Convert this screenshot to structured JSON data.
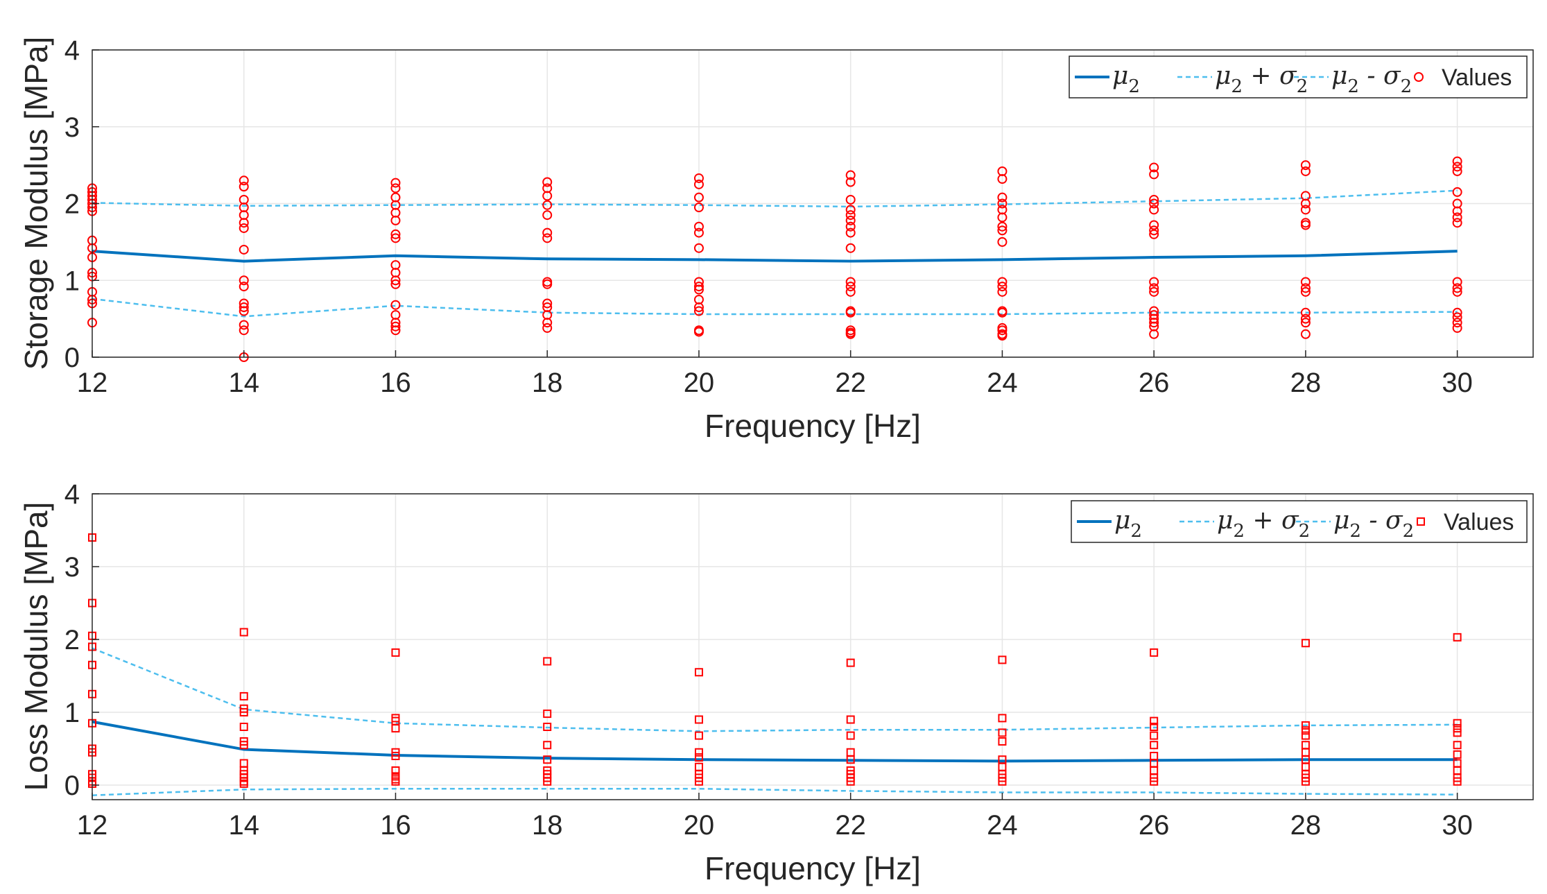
{
  "colors": {
    "mean": "#0072bd",
    "band": "#4dbeee",
    "points": "#ff0000",
    "grid": "#e6e6e6",
    "axis": "#262626"
  },
  "chart_data": [
    {
      "id": "storage",
      "type": "line",
      "marker": "circle",
      "xlabel": "Frequency [Hz]",
      "ylabel": "Storage Modulus [MPa]",
      "xlim": [
        12,
        31
      ],
      "ylim": [
        0,
        4
      ],
      "xticks": [
        12,
        14,
        16,
        18,
        20,
        22,
        24,
        26,
        28,
        30
      ],
      "yticks": [
        0,
        1,
        2,
        3,
        4
      ],
      "grid": true,
      "legend": {
        "position": "top-right",
        "entries": [
          {
            "kind": "mean",
            "label": "μ",
            "sub": "2",
            "rest": ""
          },
          {
            "kind": "plus",
            "label": "μ",
            "sub": "2",
            "rest": " + σ",
            "sub2": "2"
          },
          {
            "kind": "minus",
            "label": "μ",
            "sub": "2",
            "rest": " - σ",
            "sub2": "2"
          },
          {
            "kind": "points",
            "label": "Values"
          }
        ]
      },
      "x": [
        12,
        14,
        16,
        18,
        20,
        22,
        24,
        26,
        28,
        30
      ],
      "series": [
        {
          "name": "μ2",
          "values": [
            1.38,
            1.25,
            1.32,
            1.28,
            1.27,
            1.25,
            1.27,
            1.3,
            1.32,
            1.38
          ]
        },
        {
          "name": "μ2 + σ2",
          "values": [
            2.01,
            1.97,
            1.98,
            1.99,
            1.98,
            1.96,
            1.99,
            2.03,
            2.07,
            2.17
          ]
        },
        {
          "name": "μ2 - σ2",
          "values": [
            0.76,
            0.53,
            0.67,
            0.58,
            0.56,
            0.56,
            0.56,
            0.58,
            0.58,
            0.59
          ]
        }
      ],
      "points": [
        [
          12,
          [
            2.2,
            2.15,
            2.1,
            2.05,
            2.0,
            1.95,
            1.9,
            1.52,
            1.42,
            1.3,
            1.1,
            1.05,
            0.85,
            0.75,
            0.7,
            0.45
          ]
        ],
        [
          14,
          [
            2.3,
            2.22,
            2.05,
            1.95,
            1.85,
            1.75,
            1.68,
            1.4,
            1.0,
            0.92,
            0.7,
            0.65,
            0.6,
            0.42,
            0.35,
            0.0
          ]
        ],
        [
          16,
          [
            2.27,
            2.2,
            2.08,
            1.98,
            1.88,
            1.78,
            1.6,
            1.55,
            1.2,
            1.1,
            1.0,
            0.95,
            0.68,
            0.55,
            0.45,
            0.4,
            0.35
          ]
        ],
        [
          18,
          [
            2.28,
            2.2,
            2.1,
            1.98,
            1.85,
            1.62,
            1.55,
            0.98,
            0.95,
            0.7,
            0.65,
            0.55,
            0.45,
            0.38
          ]
        ],
        [
          20,
          [
            2.33,
            2.25,
            2.08,
            1.95,
            1.7,
            1.62,
            1.42,
            0.98,
            0.92,
            0.88,
            0.75,
            0.65,
            0.6,
            0.35,
            0.33
          ]
        ],
        [
          22,
          [
            2.37,
            2.28,
            2.05,
            1.92,
            1.85,
            1.78,
            1.7,
            1.62,
            1.42,
            0.98,
            0.92,
            0.85,
            0.6,
            0.58,
            0.35,
            0.32,
            0.3
          ]
        ],
        [
          24,
          [
            2.42,
            2.32,
            2.08,
            2.0,
            1.92,
            1.82,
            1.7,
            1.65,
            1.5,
            0.98,
            0.92,
            0.85,
            0.6,
            0.58,
            0.38,
            0.35,
            0.3,
            0.28
          ]
        ],
        [
          26,
          [
            2.47,
            2.38,
            2.05,
            2.0,
            1.92,
            1.72,
            1.65,
            1.6,
            0.98,
            0.9,
            0.85,
            0.6,
            0.55,
            0.5,
            0.45,
            0.4,
            0.3
          ]
        ],
        [
          28,
          [
            2.5,
            2.42,
            2.1,
            2.0,
            1.92,
            1.75,
            1.72,
            0.98,
            0.9,
            0.85,
            0.58,
            0.5,
            0.45,
            0.3
          ]
        ],
        [
          30,
          [
            2.55,
            2.48,
            2.42,
            2.15,
            2.0,
            1.9,
            1.82,
            1.75,
            0.98,
            0.9,
            0.85,
            0.58,
            0.52,
            0.45,
            0.38
          ]
        ]
      ]
    },
    {
      "id": "loss",
      "type": "line",
      "marker": "square",
      "xlabel": "Frequency [Hz]",
      "ylabel": "Loss Modulus [MPa]",
      "xlim": [
        12,
        31
      ],
      "ylim": [
        -0.2,
        4
      ],
      "xticks": [
        12,
        14,
        16,
        18,
        20,
        22,
        24,
        26,
        28,
        30
      ],
      "yticks": [
        0,
        1,
        2,
        3,
        4
      ],
      "grid": true,
      "legend": {
        "position": "top-right",
        "entries": [
          {
            "kind": "mean",
            "label": "μ",
            "sub": "2",
            "rest": ""
          },
          {
            "kind": "plus",
            "label": "μ",
            "sub": "2",
            "rest": " + σ",
            "sub2": "2"
          },
          {
            "kind": "minus",
            "label": "μ",
            "sub": "2",
            "rest": " - σ",
            "sub2": "2"
          },
          {
            "kind": "points",
            "label": "Values"
          }
        ]
      },
      "x": [
        12,
        14,
        16,
        18,
        20,
        22,
        24,
        26,
        28,
        30
      ],
      "series": [
        {
          "name": "μ2",
          "values": [
            0.87,
            0.49,
            0.41,
            0.37,
            0.35,
            0.34,
            0.33,
            0.34,
            0.35,
            0.35
          ]
        },
        {
          "name": "μ2 + σ2",
          "values": [
            1.88,
            1.04,
            0.85,
            0.79,
            0.74,
            0.76,
            0.76,
            0.79,
            0.82,
            0.83
          ]
        },
        {
          "name": "μ2 - σ2",
          "values": [
            -0.14,
            -0.06,
            -0.05,
            -0.05,
            -0.05,
            -0.08,
            -0.1,
            -0.1,
            -0.12,
            -0.13
          ]
        }
      ],
      "points": [
        [
          12,
          [
            3.4,
            2.5,
            2.05,
            1.9,
            1.65,
            1.25,
            0.85,
            0.5,
            0.45,
            0.15,
            0.1,
            0.05,
            0.02
          ]
        ],
        [
          14,
          [
            2.1,
            1.22,
            1.05,
            1.0,
            0.8,
            0.6,
            0.55,
            0.3,
            0.2,
            0.15,
            0.1,
            0.05,
            0.02
          ]
        ],
        [
          16,
          [
            1.82,
            0.92,
            0.88,
            0.78,
            0.45,
            0.4,
            0.2,
            0.12,
            0.08,
            0.05
          ]
        ],
        [
          18,
          [
            1.7,
            0.98,
            0.8,
            0.55,
            0.35,
            0.2,
            0.15,
            0.1,
            0.05
          ]
        ],
        [
          20,
          [
            1.55,
            0.9,
            0.68,
            0.45,
            0.38,
            0.25,
            0.15,
            0.1,
            0.05
          ]
        ],
        [
          22,
          [
            1.68,
            0.9,
            0.68,
            0.45,
            0.35,
            0.2,
            0.15,
            0.1,
            0.05
          ]
        ],
        [
          24,
          [
            1.72,
            0.92,
            0.72,
            0.6,
            0.35,
            0.25,
            0.15,
            0.1,
            0.05
          ]
        ],
        [
          26,
          [
            1.82,
            0.88,
            0.8,
            0.68,
            0.55,
            0.4,
            0.3,
            0.2,
            0.1,
            0.05
          ]
        ],
        [
          28,
          [
            1.95,
            0.82,
            0.75,
            0.68,
            0.55,
            0.45,
            0.35,
            0.25,
            0.15,
            0.1,
            0.05
          ]
        ],
        [
          30,
          [
            2.03,
            0.85,
            0.78,
            0.72,
            0.55,
            0.42,
            0.3,
            0.2,
            0.1,
            0.05
          ]
        ]
      ]
    }
  ]
}
